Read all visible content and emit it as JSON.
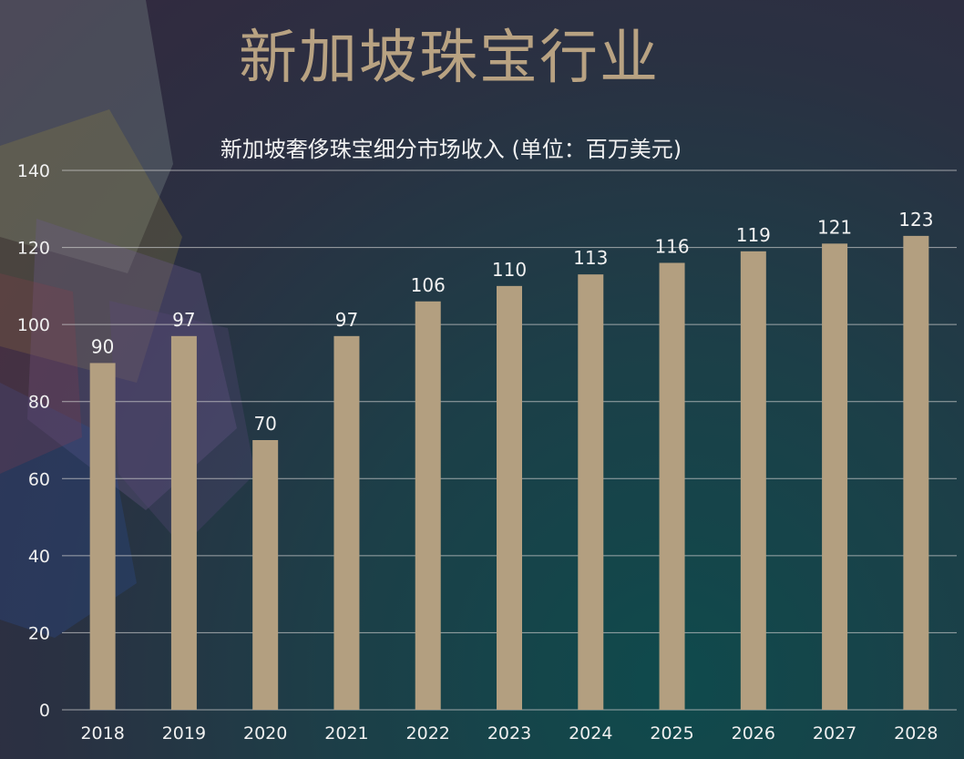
{
  "slide": {
    "title": "新加坡珠宝行业"
  },
  "colors": {
    "bar": "#b39f80",
    "title": "#b8a282",
    "text": "#f0f0f0"
  },
  "chart_data": {
    "type": "bar",
    "title": "新加坡奢侈珠宝细分市场收入 (单位：百万美元)",
    "categories": [
      "2018",
      "2019",
      "2020",
      "2021",
      "2022",
      "2023",
      "2024",
      "2025",
      "2026",
      "2027",
      "2028"
    ],
    "values": [
      90,
      97,
      70,
      97,
      106,
      110,
      113,
      116,
      119,
      121,
      123
    ],
    "data_labels": [
      "90",
      "97",
      "70",
      "97",
      "106",
      "110",
      "113",
      "116",
      "119",
      "121",
      "123"
    ],
    "ylim": [
      0,
      140
    ],
    "y_ticks": [
      0,
      20,
      40,
      60,
      80,
      100,
      120,
      140
    ],
    "grid": true,
    "legend": "none"
  }
}
